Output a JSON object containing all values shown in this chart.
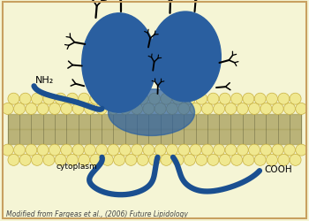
{
  "bg_color": "#f5f5d5",
  "border_color": "#c8a060",
  "membrane_ball_color": "#f0e890",
  "membrane_ball_edge": "#c8b040",
  "membrane_tail_color": "#b0a868",
  "protein_color": "#2a5fa0",
  "protein_alpha": 1.0,
  "stem_color": "#1a4f90",
  "branch_color": "#111111",
  "nh2_label": "NH₂",
  "cooh_label": "COOH",
  "cytoplasm_label": "cytoplasm",
  "footer_text": "Modified from Fargeas et al., (2006) Future Lipidology",
  "label_fontsize": 8,
  "footer_fontsize": 5.5
}
